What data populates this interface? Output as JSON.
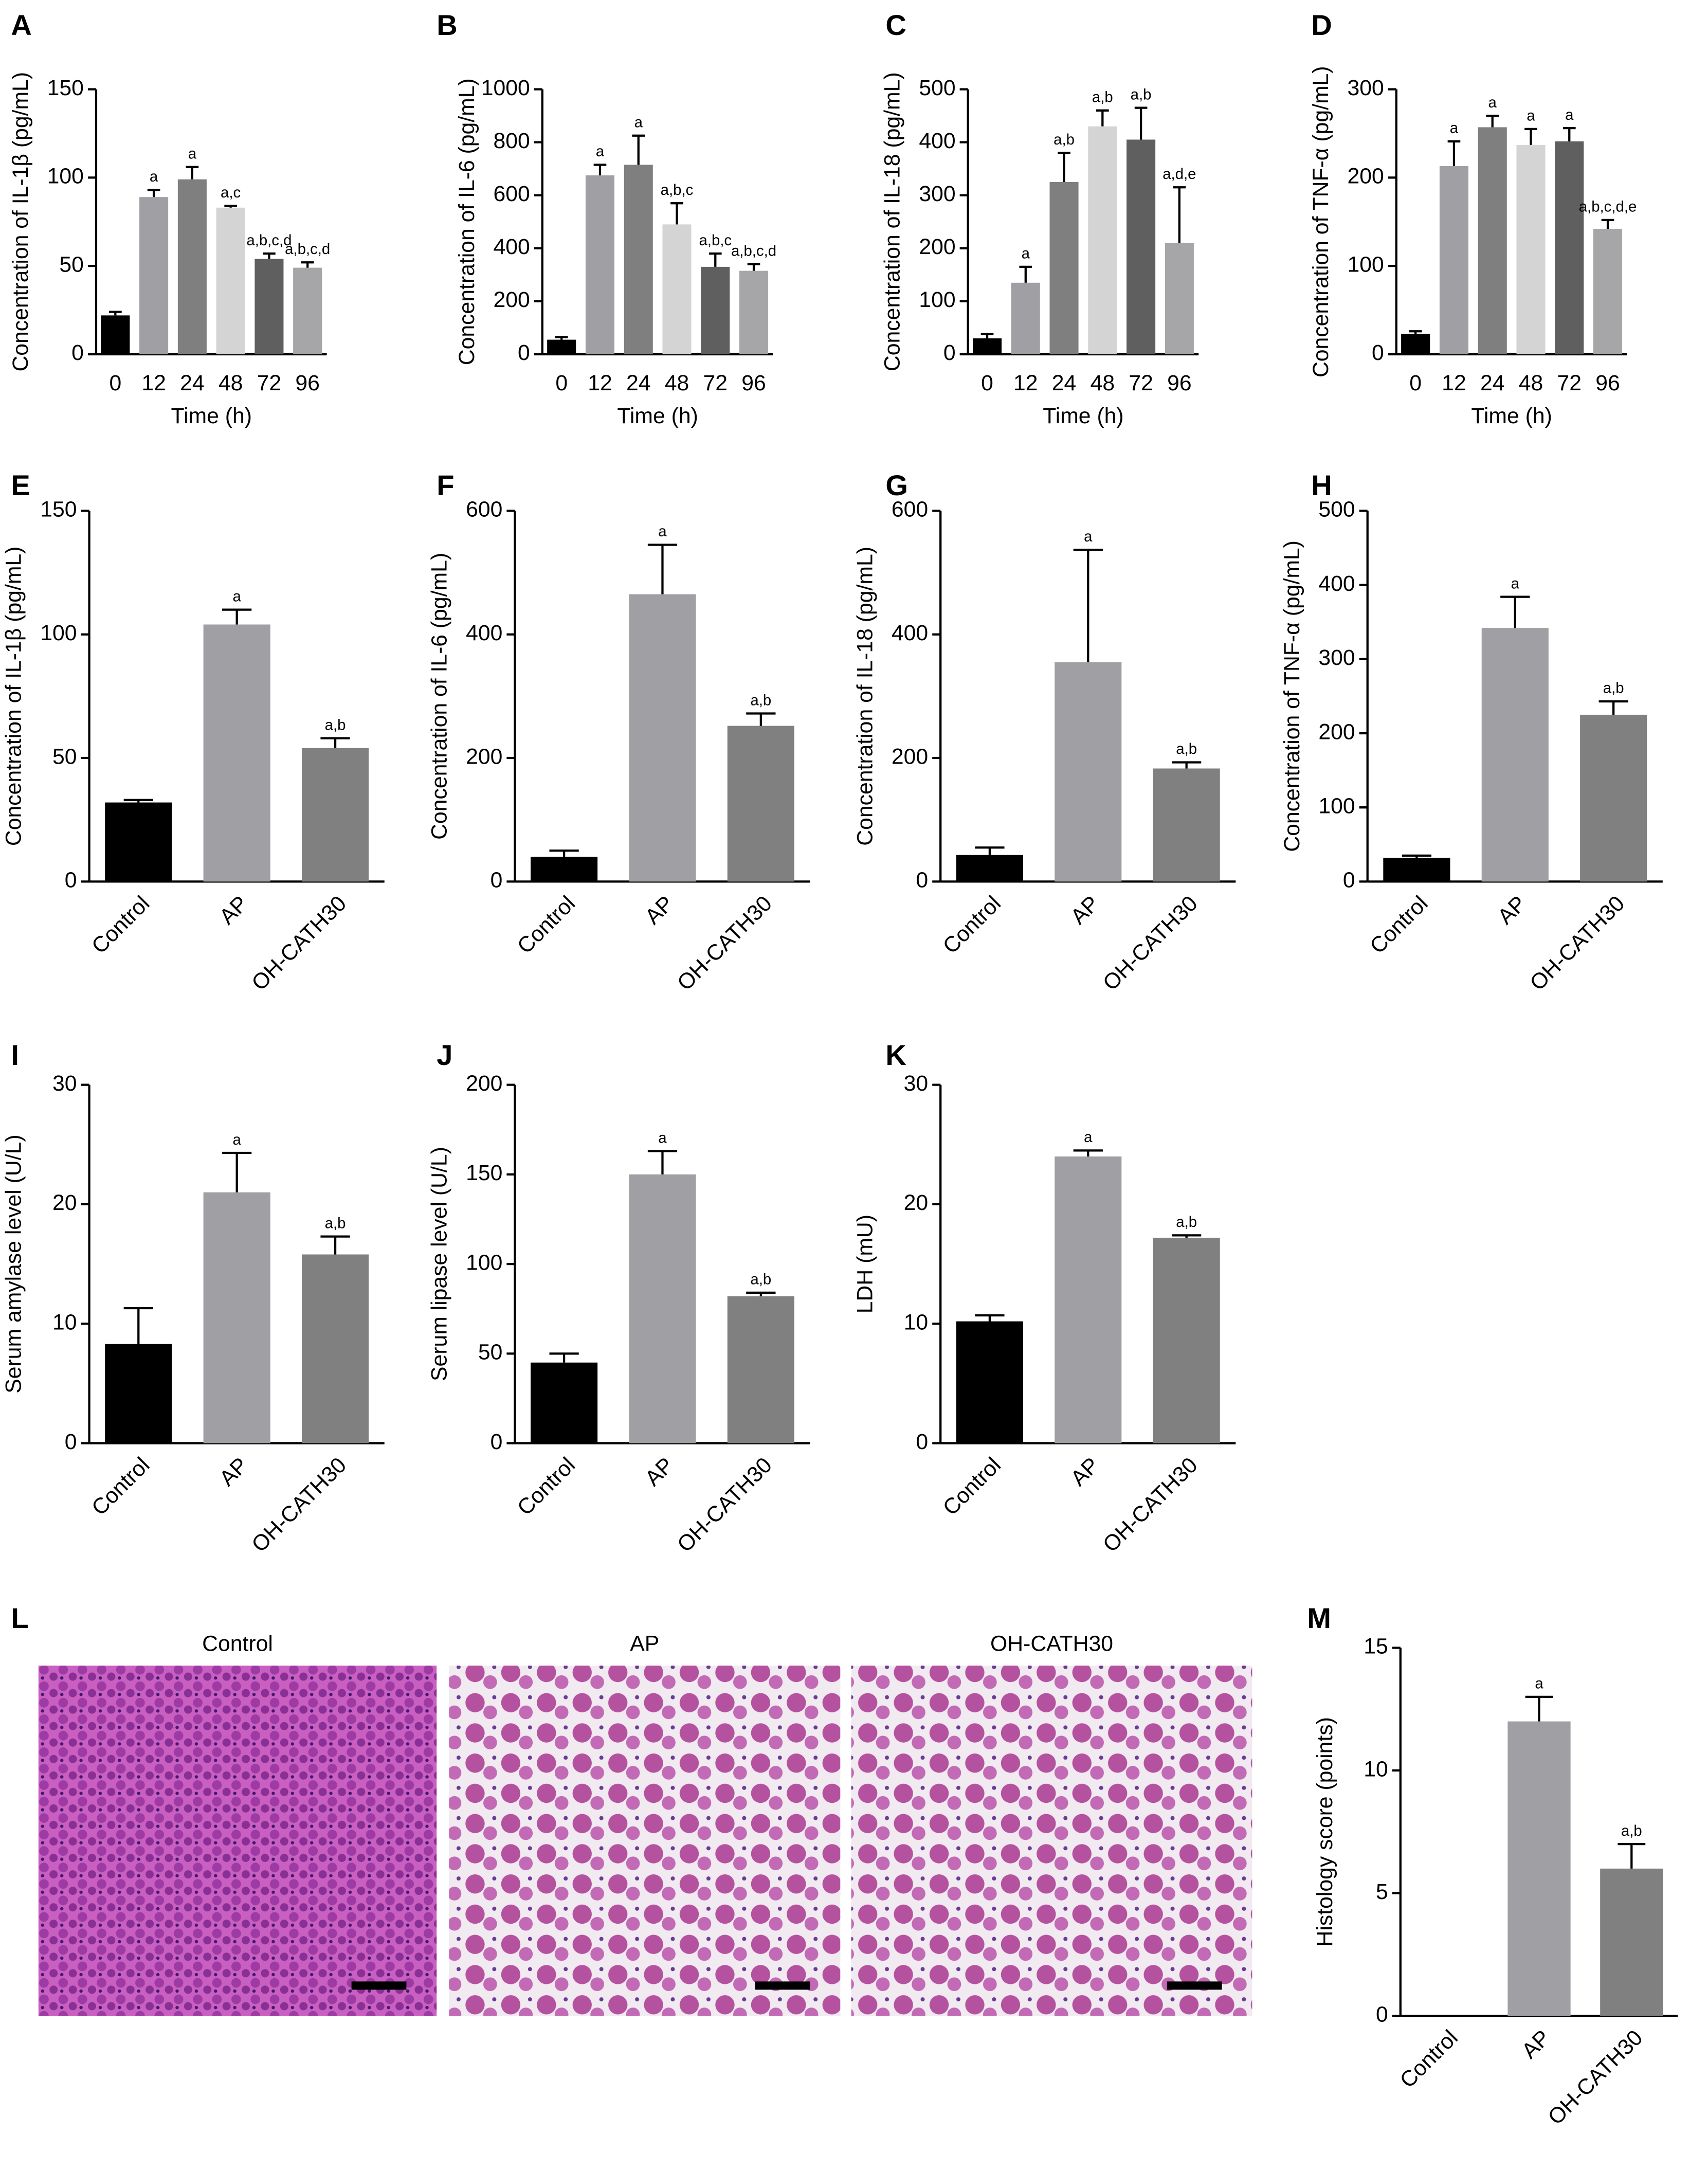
{
  "chart_data": [
    {
      "type": "bar",
      "panel": "A",
      "ylabel": "Concentration of IL-1β (pg/mL)",
      "xlabel": "Time (h)",
      "categories": [
        "0",
        "12",
        "24",
        "48",
        "72",
        "96"
      ],
      "values": [
        22,
        89,
        99,
        83,
        54,
        49
      ],
      "errors": [
        2,
        4,
        7,
        1,
        3,
        3
      ],
      "annotations": [
        null,
        "a",
        "a",
        "a,c",
        "a,b,c,d",
        "a,b,c,d"
      ],
      "colors": [
        "#000000",
        "#a0a0a4",
        "#7f7f7f",
        "#d4d4d4",
        "#5f5f5f",
        "#a6a6a8"
      ],
      "ylim": [
        0,
        150
      ],
      "yticks": [
        0,
        50,
        100,
        150
      ]
    },
    {
      "type": "bar",
      "panel": "B",
      "ylabel": "Concentration of IL-6 (pg/mL)",
      "xlabel": "Time (h)",
      "categories": [
        "0",
        "12",
        "24",
        "48",
        "72",
        "96"
      ],
      "values": [
        55,
        675,
        715,
        490,
        330,
        315
      ],
      "errors": [
        10,
        40,
        110,
        80,
        50,
        25
      ],
      "annotations": [
        null,
        "a",
        "a",
        "a,b,c",
        "a,b,c",
        "a,b,c,d"
      ],
      "colors": [
        "#000000",
        "#a0a0a4",
        "#7f7f7f",
        "#d4d4d4",
        "#5f5f5f",
        "#a6a6a8"
      ],
      "ylim": [
        0,
        1000
      ],
      "yticks": [
        0,
        200,
        400,
        600,
        800,
        1000
      ]
    },
    {
      "type": "bar",
      "panel": "C",
      "ylabel": "Concentration of IL-18 (pg/mL)",
      "xlabel": "Time (h)",
      "categories": [
        "0",
        "12",
        "24",
        "48",
        "72",
        "96"
      ],
      "values": [
        30,
        135,
        325,
        430,
        405,
        210
      ],
      "errors": [
        8,
        30,
        55,
        30,
        60,
        105
      ],
      "annotations": [
        null,
        "a",
        "a,b",
        "a,b",
        "a,b",
        "a,d,e"
      ],
      "colors": [
        "#000000",
        "#a0a0a4",
        "#7f7f7f",
        "#d4d4d4",
        "#5f5f5f",
        "#a6a6a8"
      ],
      "ylim": [
        0,
        500
      ],
      "yticks": [
        0,
        100,
        200,
        300,
        400,
        500
      ]
    },
    {
      "type": "bar",
      "panel": "D",
      "ylabel": "Concentration of TNF-α (pg/mL)",
      "xlabel": "Time (h)",
      "categories": [
        "0",
        "12",
        "24",
        "48",
        "72",
        "96"
      ],
      "values": [
        23,
        213,
        257,
        237,
        241,
        142
      ],
      "errors": [
        3,
        28,
        13,
        18,
        15,
        10
      ],
      "annotations": [
        null,
        "a",
        "a",
        "a",
        "a",
        "a,b,c,d,e"
      ],
      "colors": [
        "#000000",
        "#a0a0a4",
        "#7f7f7f",
        "#d4d4d4",
        "#5f5f5f",
        "#a6a6a8"
      ],
      "ylim": [
        0,
        300
      ],
      "yticks": [
        0,
        100,
        200,
        300
      ]
    },
    {
      "type": "bar",
      "panel": "E",
      "ylabel": "Concentration of IL-1β (pg/mL)",
      "categories": [
        "Control",
        "AP",
        "OH-CATH30"
      ],
      "values": [
        32,
        104,
        54
      ],
      "errors": [
        1,
        6,
        4
      ],
      "annotations": [
        null,
        "a",
        "a,b"
      ],
      "colors": [
        "#000000",
        "#a0a0a4",
        "#808080"
      ],
      "ylim": [
        0,
        150
      ],
      "yticks": [
        0,
        50,
        100,
        150
      ]
    },
    {
      "type": "bar",
      "panel": "F",
      "ylabel": "Concentration of IL-6 (pg/mL)",
      "categories": [
        "Control",
        "AP",
        "OH-CATH30"
      ],
      "values": [
        40,
        465,
        252
      ],
      "errors": [
        10,
        80,
        20
      ],
      "annotations": [
        null,
        "a",
        "a,b"
      ],
      "colors": [
        "#000000",
        "#a0a0a4",
        "#808080"
      ],
      "ylim": [
        0,
        600
      ],
      "yticks": [
        0,
        200,
        400,
        600
      ]
    },
    {
      "type": "bar",
      "panel": "G",
      "ylabel": "Concentration of IL-18 (pg/mL)",
      "categories": [
        "Control",
        "AP",
        "OH-CATH30"
      ],
      "values": [
        43,
        355,
        183
      ],
      "errors": [
        12,
        182,
        10
      ],
      "annotations": [
        null,
        "a",
        "a,b"
      ],
      "colors": [
        "#000000",
        "#a0a0a4",
        "#808080"
      ],
      "ylim": [
        0,
        600
      ],
      "yticks": [
        0,
        200,
        400,
        600
      ]
    },
    {
      "type": "bar",
      "panel": "H",
      "ylabel": "Concentration of TNF-α (pg/mL)",
      "categories": [
        "Control",
        "AP",
        "OH-CATH30"
      ],
      "values": [
        32,
        342,
        225
      ],
      "errors": [
        3,
        42,
        18
      ],
      "annotations": [
        null,
        "a",
        "a,b"
      ],
      "colors": [
        "#000000",
        "#a0a0a4",
        "#808080"
      ],
      "ylim": [
        0,
        500
      ],
      "yticks": [
        0,
        100,
        200,
        300,
        400,
        500
      ]
    },
    {
      "type": "bar",
      "panel": "I",
      "ylabel": "Serum amylase level (U/L)",
      "categories": [
        "Control",
        "AP",
        "OH-CATH30"
      ],
      "values": [
        8.3,
        21,
        15.8
      ],
      "errors": [
        3,
        3.3,
        1.5
      ],
      "annotations": [
        null,
        "a",
        "a,b"
      ],
      "colors": [
        "#000000",
        "#a0a0a4",
        "#808080"
      ],
      "ylim": [
        0,
        30
      ],
      "yticks": [
        0,
        10,
        20,
        30
      ]
    },
    {
      "type": "bar",
      "panel": "J",
      "ylabel": "Serum lipase level (U/L)",
      "categories": [
        "Control",
        "AP",
        "OH-CATH30"
      ],
      "values": [
        45,
        150,
        82
      ],
      "errors": [
        5,
        13,
        2
      ],
      "annotations": [
        null,
        "a",
        "a,b"
      ],
      "colors": [
        "#000000",
        "#a0a0a4",
        "#808080"
      ],
      "ylim": [
        0,
        200
      ],
      "yticks": [
        0,
        50,
        100,
        150,
        200
      ]
    },
    {
      "type": "bar",
      "panel": "K",
      "ylabel": "LDH (mU)",
      "categories": [
        "Control",
        "AP",
        "OH-CATH30"
      ],
      "values": [
        10.2,
        24,
        17.2
      ],
      "errors": [
        0.5,
        0.5,
        0.2
      ],
      "annotations": [
        null,
        "a",
        "a,b"
      ],
      "colors": [
        "#000000",
        "#a0a0a4",
        "#808080"
      ],
      "ylim": [
        0,
        30
      ],
      "yticks": [
        0,
        10,
        20,
        30
      ]
    },
    {
      "type": "image",
      "panel": "L",
      "titles": [
        "Control",
        "AP",
        "OH-CATH30"
      ]
    },
    {
      "type": "bar",
      "panel": "M",
      "ylabel": "Histology score (points)",
      "categories": [
        "Control",
        "AP",
        "OH-CATH30"
      ],
      "values": [
        0,
        12,
        6
      ],
      "errors": [
        0,
        1,
        1
      ],
      "annotations": [
        null,
        "a",
        "a,b"
      ],
      "colors": [
        "#000000",
        "#a0a0a4",
        "#808080"
      ],
      "ylim": [
        0,
        15
      ],
      "yticks": [
        0,
        5,
        10,
        15
      ]
    }
  ]
}
